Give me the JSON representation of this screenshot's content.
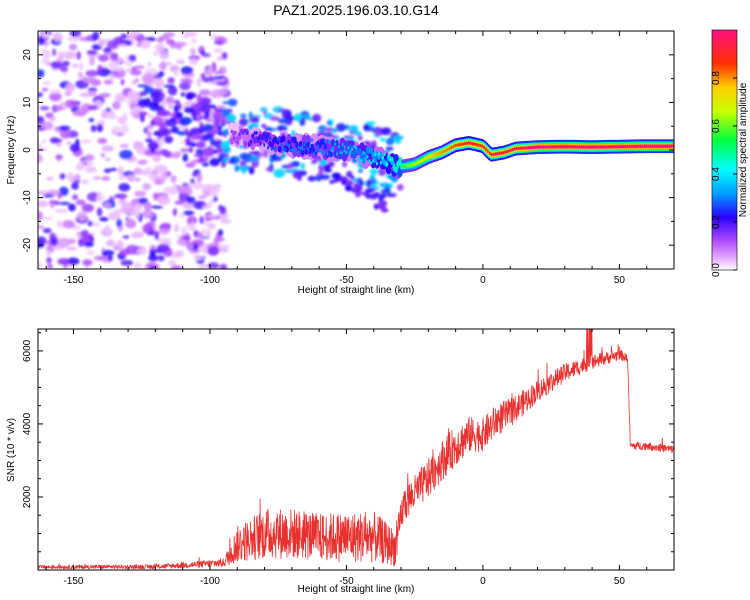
{
  "title": "PAZ1.2025.196.03.10.G14",
  "chart_data": [
    {
      "type": "heatmap",
      "xlabel": "Height of straight line (km)",
      "ylabel": "Frequency (Hz)",
      "xlim": [
        -163,
        70
      ],
      "ylim": [
        -25,
        25
      ],
      "xticks": [
        -150,
        -100,
        -50,
        0,
        50
      ],
      "yticks": [
        -20,
        -10,
        0,
        10,
        20
      ],
      "colorbar": {
        "label": "Normalized spectral amplitude",
        "range": [
          0,
          1
        ],
        "ticks": [
          "0.0",
          "0.2",
          "0.4",
          "0.6",
          "0.8"
        ],
        "tick_values": [
          0,
          0.2,
          0.4,
          0.6,
          0.8
        ]
      },
      "ridge": {
        "x": [
          -90,
          -80,
          -70,
          -60,
          -50,
          -40,
          -33,
          -30,
          -25,
          -20,
          -15,
          -10,
          -5,
          0,
          3,
          8,
          12,
          20,
          30,
          40,
          50,
          60,
          70
        ],
        "freq": [
          3,
          2,
          1,
          0.5,
          0,
          -1.5,
          -3,
          -3.5,
          -3,
          -1.5,
          -0.5,
          1,
          1.5,
          0.8,
          -1,
          -0.5,
          0.3,
          0.6,
          0.7,
          0.6,
          0.7,
          0.8,
          0.8
        ],
        "amplitude": [
          0.15,
          0.25,
          0.3,
          0.3,
          0.35,
          0.4,
          0.45,
          0.55,
          0.65,
          0.75,
          0.8,
          0.85,
          0.9,
          0.9,
          0.9,
          0.95,
          0.95,
          1,
          1,
          1,
          1,
          1,
          1
        ]
      }
    },
    {
      "type": "line",
      "xlabel": "Height of straight line (km)",
      "ylabel": "SNR (10 * v/v)",
      "xlim": [
        -163,
        70
      ],
      "ylim": [
        0,
        6600
      ],
      "xticks": [
        -150,
        -100,
        -50,
        0,
        50
      ],
      "yticks": [
        2000,
        4000,
        6000
      ],
      "color": "#e8312f",
      "envelope": {
        "x": [
          -163,
          -120,
          -105,
          -95,
          -90,
          -80,
          -70,
          -60,
          -50,
          -40,
          -32,
          -29,
          -25,
          -20,
          -15,
          -10,
          -5,
          0,
          5,
          10,
          20,
          30,
          40,
          50,
          53,
          54,
          60,
          70
        ],
        "mean": [
          80,
          90,
          150,
          200,
          700,
          1000,
          1000,
          900,
          900,
          900,
          600,
          1800,
          2100,
          2500,
          3000,
          3400,
          3700,
          3700,
          4100,
          4300,
          4900,
          5400,
          5700,
          5900,
          5800,
          3400,
          3400,
          3300
        ],
        "spread": [
          50,
          60,
          90,
          120,
          500,
          700,
          700,
          650,
          700,
          700,
          500,
          500,
          500,
          550,
          550,
          550,
          500,
          450,
          450,
          400,
          300,
          250,
          200,
          150,
          100,
          110,
          110,
          110
        ]
      }
    }
  ]
}
